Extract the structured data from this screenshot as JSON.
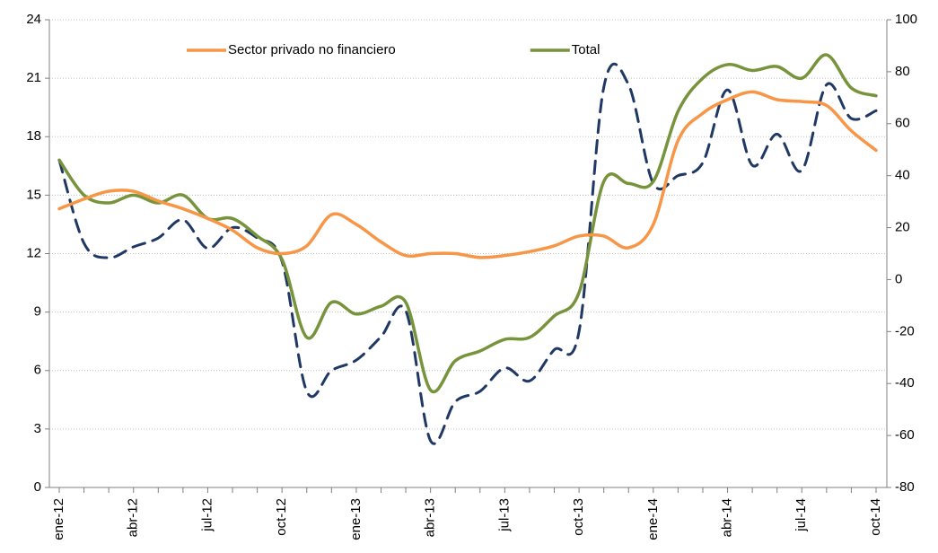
{
  "chart_data": {
    "type": "line",
    "categories": [
      "ene-12",
      null,
      null,
      "abr-12",
      null,
      null,
      "jul-12",
      null,
      null,
      "oct-12",
      null,
      null,
      "ene-13",
      null,
      null,
      "abr-13",
      null,
      null,
      "jul-13",
      null,
      null,
      "oct-13",
      null,
      null,
      "ene-14",
      null,
      null,
      "abr-14",
      null,
      null,
      "jul-14",
      null,
      null,
      "oct-14"
    ],
    "series": [
      {
        "name": "Sector privado no financiero",
        "color": "#f79646",
        "values": [
          14.3,
          14.8,
          15.2,
          15.2,
          14.7,
          14.3,
          13.8,
          13.2,
          12.3,
          12.0,
          12.4,
          14.0,
          13.5,
          12.6,
          11.9,
          12.0,
          12.0,
          11.8,
          11.9,
          12.1,
          12.4,
          12.9,
          12.9,
          12.3,
          13.5,
          17.8,
          19.2,
          19.9,
          20.3,
          19.9,
          19.8,
          19.6,
          18.3,
          17.3
        ]
      },
      {
        "name": "Total",
        "color": "#77933c",
        "values": [
          16.8,
          15.0,
          14.6,
          15.0,
          14.6,
          15.0,
          13.8,
          13.8,
          12.9,
          11.7,
          7.7,
          9.5,
          8.9,
          9.3,
          9.5,
          5.0,
          6.5,
          7.0,
          7.6,
          7.7,
          8.8,
          10.0,
          15.7,
          15.6,
          15.7,
          19.3,
          21.0,
          21.7,
          21.4,
          21.6,
          21.0,
          22.2,
          20.5,
          20.1
        ]
      },
      {
        "color": "#1f3864",
        "dashed": true,
        "axis": "y2",
        "values": [
          46,
          14,
          8.4,
          12.6,
          16,
          23,
          12,
          20,
          16,
          7,
          -43,
          -35,
          -31,
          -22,
          -12,
          -62,
          -47,
          -43,
          -34,
          -39,
          -27,
          -20,
          74,
          75,
          37,
          40,
          45,
          73,
          44,
          56,
          42,
          75,
          62,
          65
        ]
      }
    ],
    "ylim": [
      0,
      24
    ],
    "yticks": [
      0,
      3,
      6,
      9,
      12,
      15,
      18,
      21,
      24
    ],
    "y2lim": [
      -80,
      100
    ],
    "y2ticks": [
      -80,
      -60,
      -40,
      -20,
      0,
      20,
      40,
      60,
      80,
      100
    ],
    "grid": true,
    "legend": "top"
  }
}
